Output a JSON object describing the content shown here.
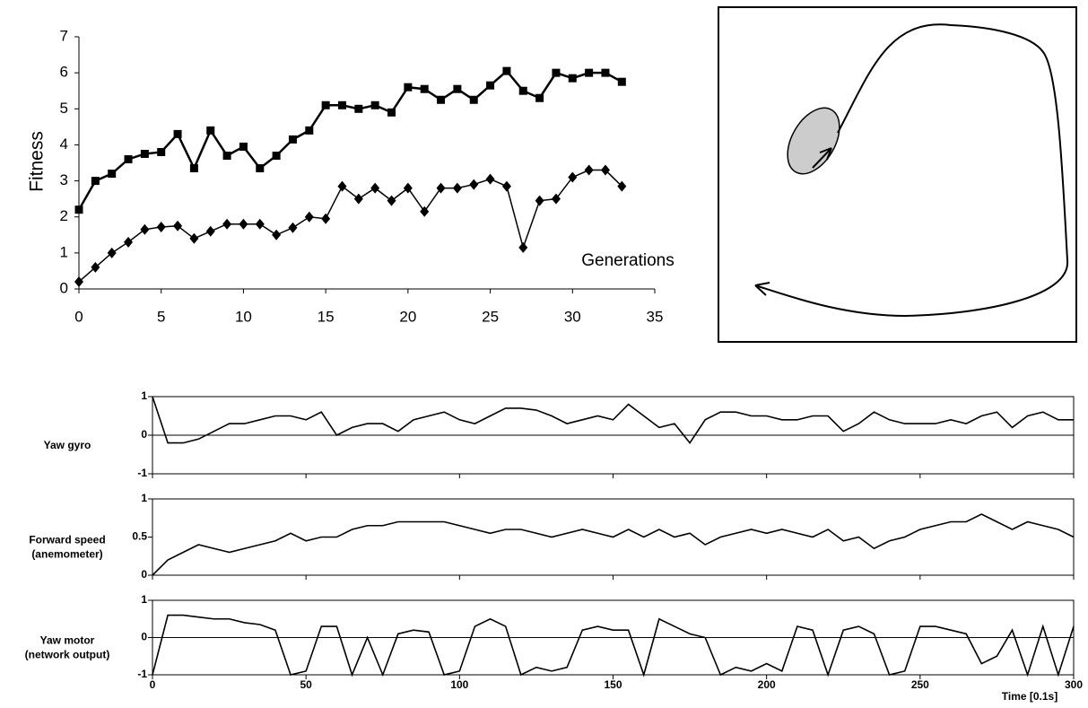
{
  "chart_data": [
    {
      "type": "line",
      "xlabel": "Generations",
      "ylabel": "Fitness",
      "x": [
        0,
        1,
        2,
        3,
        4,
        5,
        6,
        7,
        8,
        9,
        10,
        11,
        12,
        13,
        14,
        15,
        16,
        17,
        18,
        19,
        20,
        21,
        22,
        23,
        24,
        25,
        26,
        27,
        28,
        29,
        30,
        31,
        32,
        33
      ],
      "series": [
        {
          "color": "#000000",
          "marker": "square",
          "values": [
            2.2,
            3.0,
            3.2,
            3.6,
            3.75,
            3.8,
            4.3,
            3.35,
            4.4,
            3.7,
            3.95,
            3.35,
            3.7,
            4.15,
            4.4,
            5.1,
            5.1,
            5.0,
            5.1,
            4.9,
            5.6,
            5.55,
            5.25,
            5.55,
            5.25,
            5.65,
            6.05,
            5.5,
            5.3,
            6.0,
            5.85,
            6.0,
            6.0,
            5.75
          ]
        },
        {
          "color": "#000000",
          "marker": "diamond",
          "values": [
            0.2,
            0.6,
            1.0,
            1.3,
            1.65,
            1.72,
            1.75,
            1.4,
            1.6,
            1.8,
            1.8,
            1.8,
            1.5,
            1.7,
            2.0,
            1.95,
            2.85,
            2.5,
            2.8,
            2.45,
            2.8,
            2.15,
            2.8,
            2.8,
            2.9,
            3.05,
            2.85,
            1.15,
            2.45,
            2.5,
            3.1,
            3.3,
            3.3,
            2.85
          ]
        }
      ],
      "xlim": [
        0,
        35
      ],
      "xticks": [
        0,
        5,
        10,
        15,
        20,
        25,
        30,
        35
      ],
      "ylim": [
        0,
        7
      ],
      "yticks": [
        0,
        1,
        2,
        3,
        4,
        5,
        6,
        7
      ]
    },
    {
      "type": "line",
      "ylabel": [
        "Yaw gyro"
      ],
      "x": [
        0,
        5,
        10,
        15,
        20,
        25,
        30,
        35,
        40,
        45,
        50,
        55,
        60,
        65,
        70,
        75,
        80,
        85,
        90,
        95,
        100,
        105,
        110,
        115,
        120,
        125,
        130,
        135,
        140,
        145,
        150,
        155,
        160,
        165,
        170,
        175,
        180,
        185,
        190,
        195,
        200,
        205,
        210,
        215,
        220,
        225,
        230,
        235,
        240,
        245,
        250,
        255,
        260,
        265,
        270,
        275,
        280,
        285,
        290,
        295,
        300
      ],
      "series": [
        {
          "color": "#000000",
          "values": [
            1.0,
            -0.2,
            -0.2,
            -0.1,
            0.1,
            0.3,
            0.3,
            0.4,
            0.5,
            0.5,
            0.4,
            0.6,
            0.0,
            0.2,
            0.3,
            0.3,
            0.1,
            0.4,
            0.5,
            0.6,
            0.4,
            0.3,
            0.5,
            0.7,
            0.7,
            0.65,
            0.5,
            0.3,
            0.4,
            0.5,
            0.4,
            0.8,
            0.5,
            0.2,
            0.3,
            -0.2,
            0.4,
            0.6,
            0.6,
            0.5,
            0.5,
            0.4,
            0.4,
            0.5,
            0.5,
            0.1,
            0.3,
            0.6,
            0.4,
            0.3,
            0.3,
            0.3,
            0.4,
            0.3,
            0.5,
            0.6,
            0.2,
            0.5,
            0.6,
            0.4,
            0.4
          ]
        }
      ],
      "xlim": [
        0,
        300
      ],
      "ylim": [
        -1,
        1
      ],
      "yticks": [
        -1,
        0,
        1
      ]
    },
    {
      "type": "line",
      "ylabel": [
        "Forward speed",
        "(anemometer)"
      ],
      "x": [
        0,
        5,
        10,
        15,
        20,
        25,
        30,
        35,
        40,
        45,
        50,
        55,
        60,
        65,
        70,
        75,
        80,
        85,
        90,
        95,
        100,
        105,
        110,
        115,
        120,
        125,
        130,
        135,
        140,
        145,
        150,
        155,
        160,
        165,
        170,
        175,
        180,
        185,
        190,
        195,
        200,
        205,
        210,
        215,
        220,
        225,
        230,
        235,
        240,
        245,
        250,
        255,
        260,
        265,
        270,
        275,
        280,
        285,
        290,
        295,
        300
      ],
      "series": [
        {
          "color": "#000000",
          "values": [
            0,
            0.2,
            0.3,
            0.4,
            0.35,
            0.3,
            0.35,
            0.4,
            0.45,
            0.55,
            0.45,
            0.5,
            0.5,
            0.6,
            0.65,
            0.65,
            0.7,
            0.7,
            0.7,
            0.7,
            0.65,
            0.6,
            0.55,
            0.6,
            0.6,
            0.55,
            0.5,
            0.55,
            0.6,
            0.55,
            0.5,
            0.6,
            0.5,
            0.6,
            0.5,
            0.55,
            0.4,
            0.5,
            0.55,
            0.6,
            0.55,
            0.6,
            0.55,
            0.5,
            0.6,
            0.45,
            0.5,
            0.35,
            0.45,
            0.5,
            0.6,
            0.65,
            0.7,
            0.7,
            0.8,
            0.7,
            0.6,
            0.7,
            0.65,
            0.6,
            0.5
          ]
        }
      ],
      "xlim": [
        0,
        300
      ],
      "ylim": [
        0,
        1
      ],
      "yticks": [
        0,
        0.5,
        1
      ]
    },
    {
      "type": "line",
      "ylabel": [
        "Yaw motor",
        "(network output)"
      ],
      "xlabel": "Time [0.1s]",
      "x": [
        0,
        5,
        10,
        15,
        20,
        25,
        30,
        35,
        40,
        45,
        50,
        55,
        60,
        65,
        70,
        75,
        80,
        85,
        90,
        95,
        100,
        105,
        110,
        115,
        120,
        125,
        130,
        135,
        140,
        145,
        150,
        155,
        160,
        165,
        170,
        175,
        180,
        185,
        190,
        195,
        200,
        205,
        210,
        215,
        220,
        225,
        230,
        235,
        240,
        245,
        250,
        255,
        260,
        265,
        270,
        275,
        280,
        285,
        290,
        295,
        300
      ],
      "series": [
        {
          "color": "#000000",
          "values": [
            -1,
            0.6,
            0.6,
            0.55,
            0.5,
            0.5,
            0.4,
            0.35,
            0.2,
            -1,
            -0.9,
            0.3,
            0.3,
            -1,
            0.0,
            -1,
            0.1,
            0.2,
            0.15,
            -1,
            -0.9,
            0.3,
            0.5,
            0.3,
            -1,
            -0.8,
            -0.9,
            -0.8,
            0.2,
            0.3,
            0.2,
            0.2,
            -1,
            0.5,
            0.3,
            0.1,
            0.0,
            -1,
            -0.8,
            -0.9,
            -0.7,
            -0.9,
            0.3,
            0.2,
            -1,
            0.2,
            0.3,
            0.1,
            -1,
            -0.9,
            0.3,
            0.3,
            0.2,
            0.1,
            -0.7,
            -0.5,
            0.2,
            -1,
            0.3,
            -1,
            0.3
          ]
        }
      ],
      "xlim": [
        0,
        300
      ],
      "xticks": [
        0,
        50,
        100,
        150,
        200,
        250,
        300
      ],
      "ylim": [
        -1,
        1
      ],
      "yticks": [
        -1,
        0,
        1
      ]
    }
  ]
}
